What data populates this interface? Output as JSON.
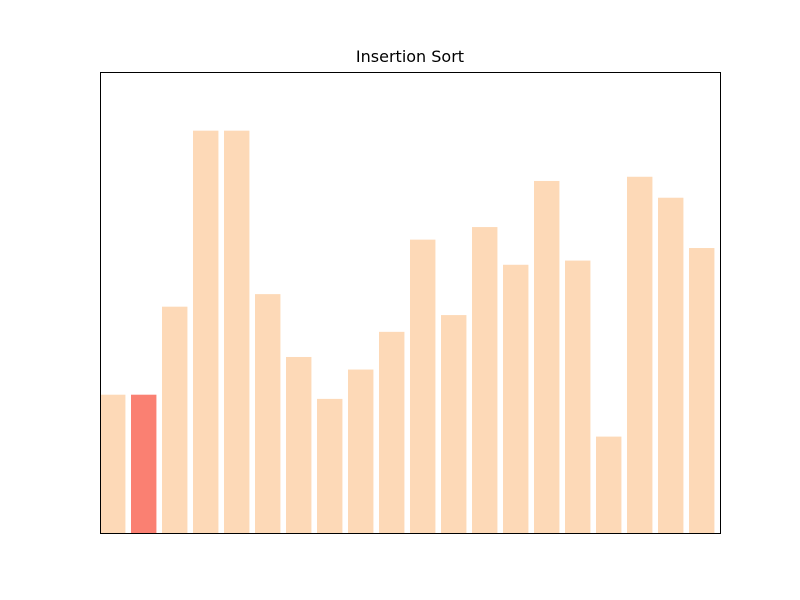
{
  "chart_data": {
    "type": "bar",
    "title": "Insertion Sort",
    "xlabel": "",
    "ylabel": "",
    "values": [
      33,
      33,
      54,
      96,
      96,
      57,
      42,
      32,
      39,
      48,
      70,
      52,
      73,
      64,
      84,
      65,
      23,
      85,
      80,
      68
    ],
    "highlight_index": 1,
    "ylim": [
      0,
      110
    ],
    "axes_ticks_visible": false,
    "grid": false,
    "colors": {
      "bar": "#fdd9b7",
      "highlight": "#fa8072",
      "frame": "#000000"
    }
  }
}
